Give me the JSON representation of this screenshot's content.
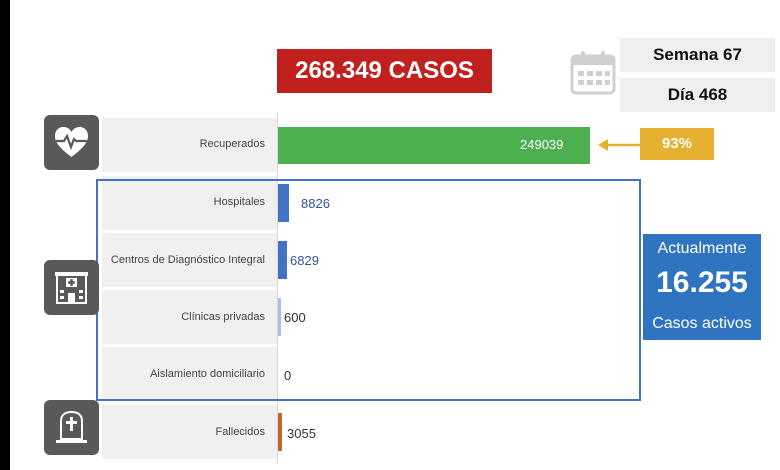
{
  "header": {
    "total_cases": "268.349 CASOS",
    "week": "Semana 67",
    "day": "Día 468"
  },
  "recovered_pct": "93%",
  "active": {
    "label_top": "Actualmente",
    "value": "16.255",
    "label_bottom": "Casos activos"
  },
  "icons": [
    "heart-pulse-icon",
    "hospital-icon",
    "tombstone-icon",
    "calendar-icon"
  ],
  "colors": {
    "recovered": "#4caf50",
    "hospitalized": "#4472c4",
    "deceased": "#c0692b",
    "total_box": "#c0201e",
    "pct_badge": "#e6b030",
    "active_box": "#2f74c0"
  },
  "chart_data": {
    "type": "bar",
    "orientation": "horizontal",
    "categories": [
      "Recuperados",
      "Hospitales",
      "Centros de Diagnóstico Integral",
      "Clínicas privadas",
      "Aislamiento domiciliario",
      "Fallecidos"
    ],
    "values": [
      249039,
      8826,
      6829,
      600,
      0,
      3055
    ],
    "value_labels": [
      "249039",
      "8826",
      "6829",
      "600",
      "0",
      "3055"
    ],
    "xlim": [
      0,
      249039
    ]
  }
}
